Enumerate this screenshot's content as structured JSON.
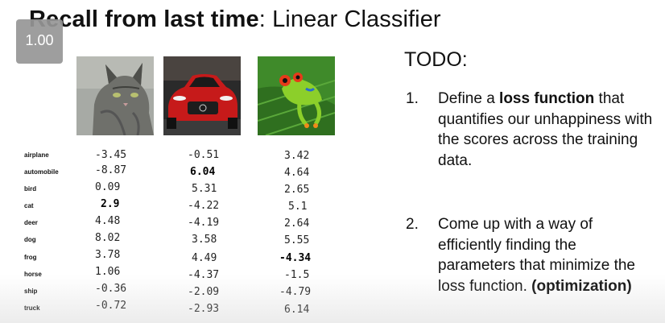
{
  "slide": {
    "title_bold": "Recall from last time",
    "title_rest": ": Linear Classifier"
  },
  "player": {
    "speed": "1.00"
  },
  "images": [
    "cat-image",
    "car-image",
    "frog-image"
  ],
  "scores": {
    "labels": [
      "airplane",
      "automobile",
      "bird",
      "cat",
      "deer",
      "dog",
      "frog",
      "horse",
      "ship",
      "truck"
    ],
    "cat": [
      "-3.45",
      "-8.87",
      "0.09",
      "2.9",
      "4.48",
      "8.02",
      "3.78",
      "1.06",
      "-0.36",
      "-0.72"
    ],
    "car": [
      "-0.51",
      "6.04",
      "5.31",
      "-4.22",
      "-4.19",
      "3.58",
      "4.49",
      "-4.37",
      "-2.09",
      "-2.93"
    ],
    "frog": [
      "3.42",
      "4.64",
      "2.65",
      "5.1",
      "2.64",
      "5.55",
      "-4.34",
      "-1.5",
      "-4.79",
      "6.14"
    ],
    "bold_cat_index": 3,
    "bold_car_index": 1,
    "bold_frog_index": 6
  },
  "todo": {
    "title": "TODO:",
    "item1": {
      "number": "1.",
      "pre": "Define a ",
      "bold": "loss function",
      "post": " that quantifies our unhappiness with the scores across the training data."
    },
    "item2": {
      "number": "2.",
      "pre": "Come up with a way of efficiently finding the parameters that minimize the loss function. ",
      "bold": "(optimization)"
    }
  }
}
